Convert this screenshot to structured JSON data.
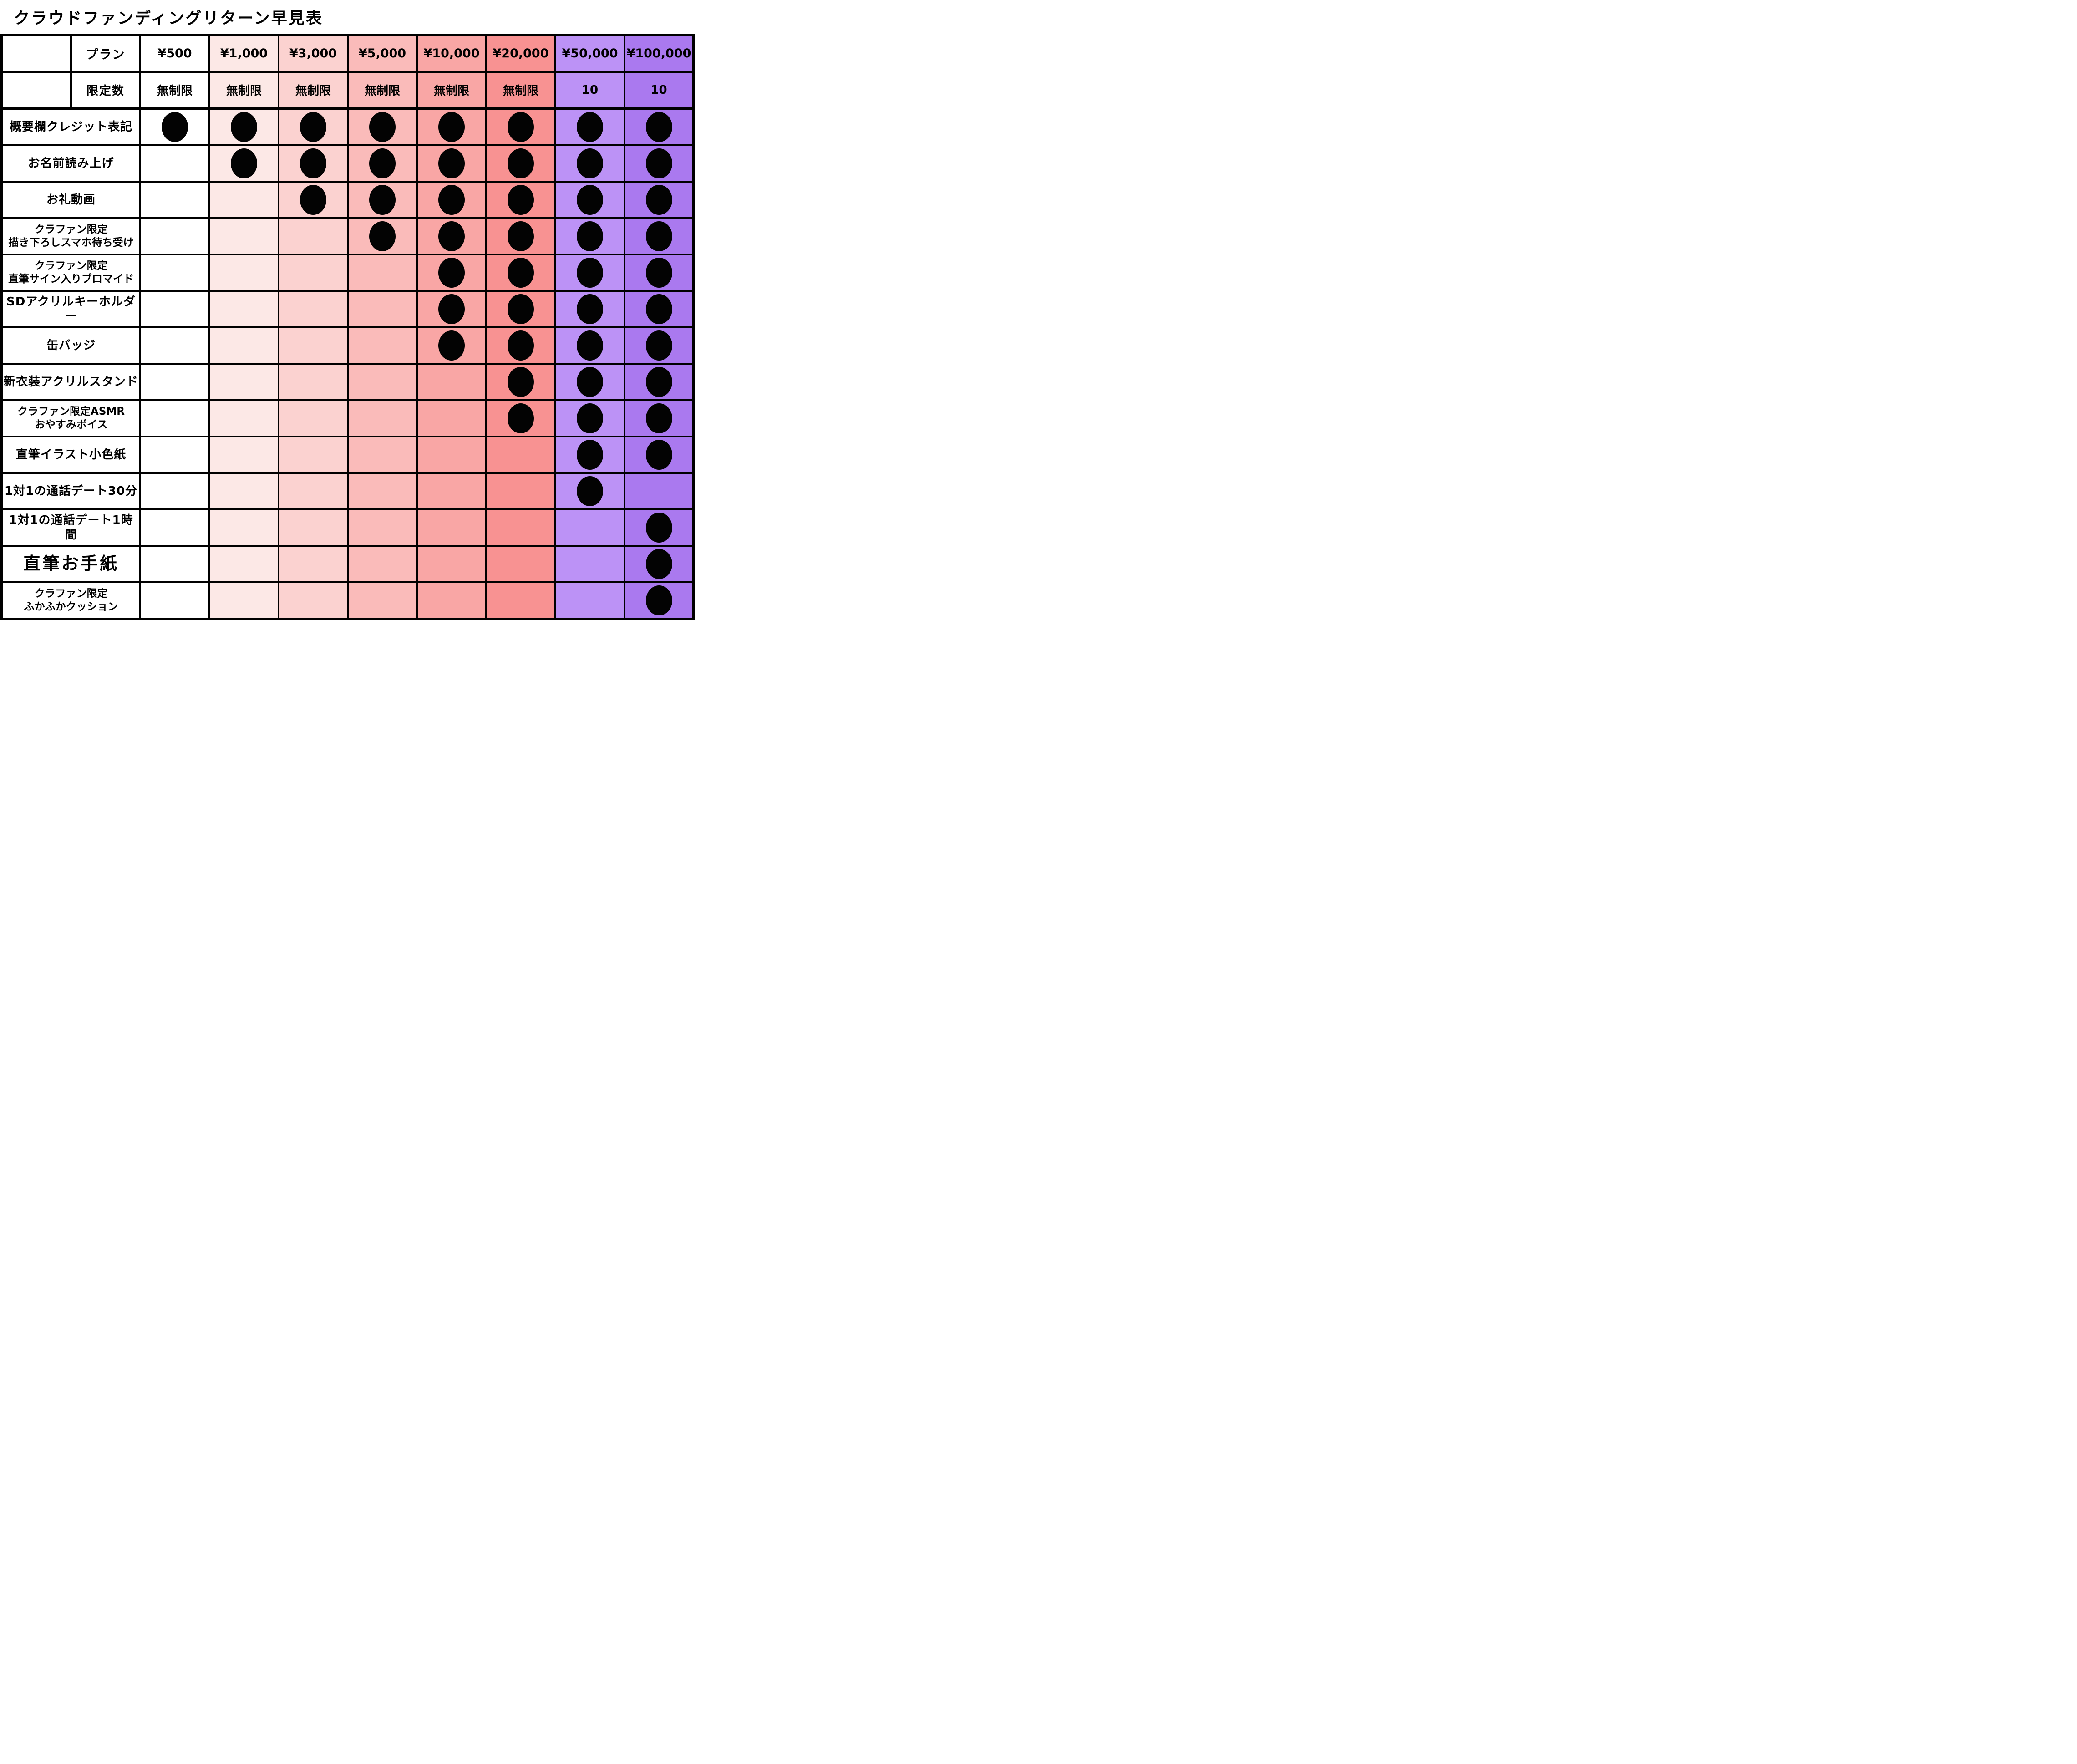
{
  "title": "クラウドファンディングリターン早見表",
  "header": {
    "plan_label": "プラン",
    "limit_label": "限定数"
  },
  "dot_color": "#030303",
  "grid_color": "#000000",
  "plans": [
    {
      "price": "¥500",
      "limit": "無制限",
      "color": "#ffffff"
    },
    {
      "price": "¥1,000",
      "limit": "無制限",
      "color": "#fce8e6"
    },
    {
      "price": "¥3,000",
      "limit": "無制限",
      "color": "#fbd2d0"
    },
    {
      "price": "¥5,000",
      "limit": "無制限",
      "color": "#fabbba"
    },
    {
      "price": "¥10,000",
      "limit": "無制限",
      "color": "#f9a6a5"
    },
    {
      "price": "¥20,000",
      "limit": "無制限",
      "color": "#f89292"
    },
    {
      "price": "¥50,000",
      "limit": "10",
      "color": "#bc92f6"
    },
    {
      "price": "¥100,000",
      "limit": "10",
      "color": "#aa79ef"
    }
  ],
  "features": [
    {
      "label_lines": [
        "概要欄クレジット表記"
      ],
      "label_size": "m",
      "dots": [
        1,
        1,
        1,
        1,
        1,
        1,
        1,
        1
      ]
    },
    {
      "label_lines": [
        "お名前読み上げ"
      ],
      "label_size": "m",
      "dots": [
        0,
        1,
        1,
        1,
        1,
        1,
        1,
        1
      ]
    },
    {
      "label_lines": [
        "お礼動画"
      ],
      "label_size": "m",
      "dots": [
        0,
        0,
        1,
        1,
        1,
        1,
        1,
        1
      ]
    },
    {
      "label_lines": [
        "クラファン限定",
        "描き下ろしスマホ待ち受け"
      ],
      "label_size": "s",
      "dots": [
        0,
        0,
        0,
        1,
        1,
        1,
        1,
        1
      ]
    },
    {
      "label_lines": [
        "クラファン限定",
        "直筆サイン入りブロマイド"
      ],
      "label_size": "s",
      "dots": [
        0,
        0,
        0,
        0,
        1,
        1,
        1,
        1
      ]
    },
    {
      "label_lines": [
        "SDアクリルキーホルダー"
      ],
      "label_size": "m",
      "dots": [
        0,
        0,
        0,
        0,
        1,
        1,
        1,
        1
      ]
    },
    {
      "label_lines": [
        "缶バッジ"
      ],
      "label_size": "m",
      "dots": [
        0,
        0,
        0,
        0,
        1,
        1,
        1,
        1
      ]
    },
    {
      "label_lines": [
        "新衣装アクリルスタンド"
      ],
      "label_size": "m",
      "dots": [
        0,
        0,
        0,
        0,
        0,
        1,
        1,
        1
      ]
    },
    {
      "label_lines": [
        "クラファン限定ASMR",
        "おやすみボイス"
      ],
      "label_size": "s",
      "dots": [
        0,
        0,
        0,
        0,
        0,
        1,
        1,
        1
      ]
    },
    {
      "label_lines": [
        "直筆イラスト小色紙"
      ],
      "label_size": "m",
      "dots": [
        0,
        0,
        0,
        0,
        0,
        0,
        1,
        1
      ]
    },
    {
      "label_lines": [
        "1対1の通話デート30分"
      ],
      "label_size": "m",
      "dots": [
        0,
        0,
        0,
        0,
        0,
        0,
        1,
        0
      ]
    },
    {
      "label_lines": [
        "1対1の通話デート1時間"
      ],
      "label_size": "m",
      "dots": [
        0,
        0,
        0,
        0,
        0,
        0,
        0,
        1
      ]
    },
    {
      "label_lines": [
        "直筆お手紙"
      ],
      "label_size": "l",
      "dots": [
        0,
        0,
        0,
        0,
        0,
        0,
        0,
        1
      ]
    },
    {
      "label_lines": [
        "クラファン限定",
        "ふかふかクッション"
      ],
      "label_size": "s",
      "dots": [
        0,
        0,
        0,
        0,
        0,
        0,
        0,
        1
      ]
    }
  ]
}
